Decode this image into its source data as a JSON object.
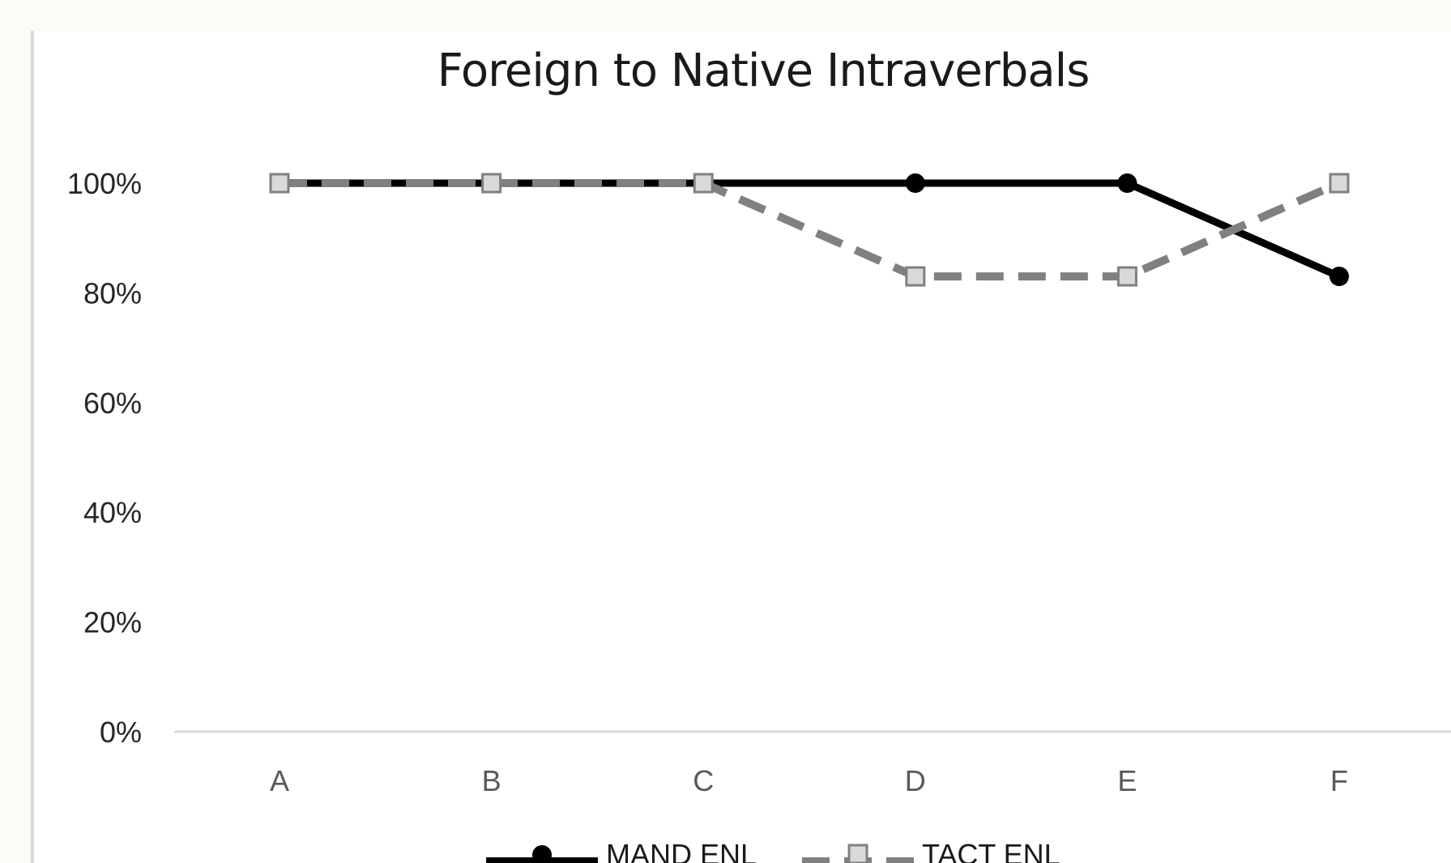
{
  "chart_data": {
    "type": "line",
    "title": "Foreign to Native Intraverbals",
    "xlabel": "",
    "ylabel": "",
    "categories": [
      "A",
      "B",
      "C",
      "D",
      "E",
      "F"
    ],
    "ylim": [
      0,
      1
    ],
    "yticks": [
      {
        "value": 0,
        "label": "0%"
      },
      {
        "value": 0.2,
        "label": "20%"
      },
      {
        "value": 0.4,
        "label": "40%"
      },
      {
        "value": 0.6,
        "label": "60%"
      },
      {
        "value": 0.8,
        "label": "80%"
      },
      {
        "value": 1.0,
        "label": "100%"
      }
    ],
    "grid": false,
    "legend_position": "bottom",
    "series": [
      {
        "name": "MAND ENL",
        "values": [
          1.0,
          1.0,
          1.0,
          1.0,
          1.0,
          0.83
        ],
        "color": "#000000",
        "line_style": "solid",
        "marker": "circle"
      },
      {
        "name": "TACT ENL",
        "values": [
          1.0,
          1.0,
          1.0,
          0.83,
          0.83,
          1.0
        ],
        "color": "#808080",
        "line_style": "dashed",
        "marker": "square"
      }
    ]
  }
}
